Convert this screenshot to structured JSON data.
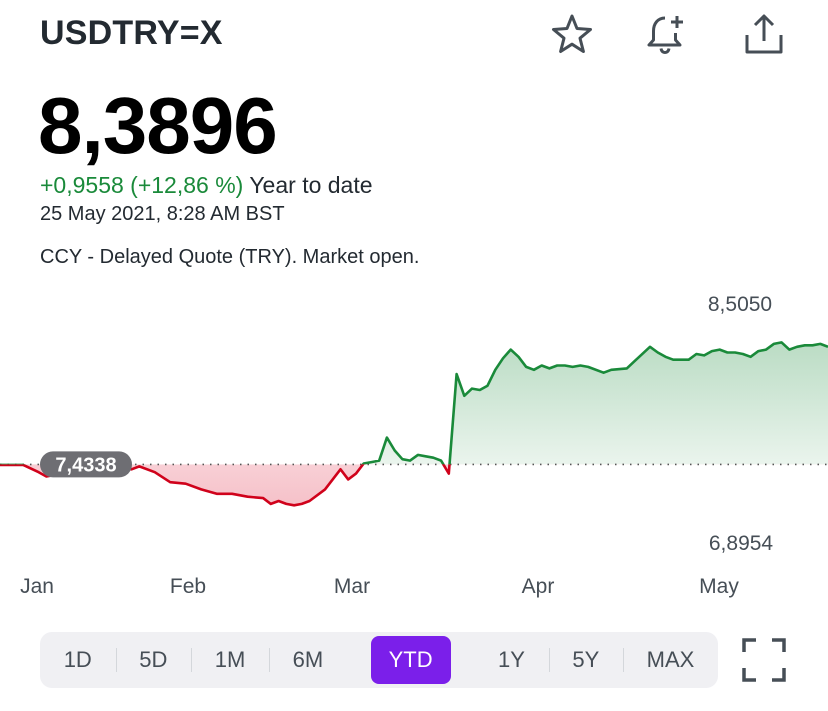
{
  "header": {
    "ticker": "USDTRY=X",
    "icons": [
      "star-icon",
      "bell-plus-icon",
      "share-icon"
    ]
  },
  "quote": {
    "price": "8,3896",
    "change": "+0,9558 (+12,86 %)",
    "period": "Year to date",
    "timestamp": "25 May 2021, 8:28 AM BST",
    "note": "CCY - Delayed Quote (TRY). Market open."
  },
  "chart_data": {
    "type": "line",
    "high_label": "8,5050",
    "low_label": "6,8954",
    "baseline_label": "7,4338",
    "baseline_value": 7.4338,
    "ylim": [
      6.8954,
      8.505
    ],
    "x_labels": [
      "Jan",
      "Feb",
      "Mar",
      "Apr",
      "May"
    ],
    "colors": {
      "up": "#1a8a3a",
      "down": "#d0021b",
      "up_fill": "#1a8a3a",
      "down_fill": "#e0304a",
      "baseline_pill": "#6e6e73"
    },
    "series": [
      {
        "values": [
          [
            0,
            7.43
          ],
          [
            3,
            7.43
          ],
          [
            5,
            7.38
          ],
          [
            6,
            7.35
          ],
          [
            8,
            7.37
          ],
          [
            10,
            7.4
          ],
          [
            12,
            7.44
          ],
          [
            14,
            7.43
          ],
          [
            16,
            7.41
          ],
          [
            17,
            7.4
          ],
          [
            18,
            7.42
          ],
          [
            20,
            7.38
          ],
          [
            22,
            7.31
          ],
          [
            24,
            7.3
          ],
          [
            26,
            7.26
          ],
          [
            28,
            7.23
          ],
          [
            30,
            7.23
          ],
          [
            32,
            7.21
          ],
          [
            34,
            7.2
          ],
          [
            35,
            7.16
          ],
          [
            36,
            7.18
          ],
          [
            37,
            7.16
          ],
          [
            38,
            7.15
          ],
          [
            39,
            7.16
          ],
          [
            40,
            7.18
          ],
          [
            42,
            7.26
          ],
          [
            43,
            7.33
          ],
          [
            44,
            7.4
          ],
          [
            45,
            7.33
          ],
          [
            46,
            7.37
          ],
          [
            47,
            7.44
          ],
          [
            48,
            7.45
          ],
          [
            49,
            7.46
          ],
          [
            50,
            7.62
          ],
          [
            51,
            7.53
          ],
          [
            52,
            7.47
          ],
          [
            53,
            7.46
          ],
          [
            54,
            7.5
          ],
          [
            55,
            7.49
          ],
          [
            56,
            7.48
          ],
          [
            57,
            7.46
          ],
          [
            58,
            7.37
          ],
          [
            59,
            8.06
          ],
          [
            60,
            7.91
          ],
          [
            61,
            7.96
          ],
          [
            62,
            7.95
          ],
          [
            63,
            7.98
          ],
          [
            64,
            8.09
          ],
          [
            65,
            8.17
          ],
          [
            66,
            8.23
          ],
          [
            67,
            8.18
          ],
          [
            68,
            8.11
          ],
          [
            69,
            8.09
          ],
          [
            70,
            8.12
          ],
          [
            71,
            8.1
          ],
          [
            72,
            8.12
          ],
          [
            73,
            8.12
          ],
          [
            74,
            8.11
          ],
          [
            75,
            8.12
          ],
          [
            76,
            8.11
          ],
          [
            78,
            8.07
          ],
          [
            79,
            8.09
          ],
          [
            81,
            8.1
          ],
          [
            82,
            8.15
          ],
          [
            84,
            8.25
          ],
          [
            85,
            8.21
          ],
          [
            86,
            8.18
          ],
          [
            87,
            8.16
          ],
          [
            88,
            8.16
          ],
          [
            89,
            8.16
          ],
          [
            90,
            8.2
          ],
          [
            91,
            8.19
          ],
          [
            92,
            8.22
          ],
          [
            93,
            8.23
          ],
          [
            94,
            8.21
          ],
          [
            95,
            8.21
          ],
          [
            96,
            8.2
          ],
          [
            97,
            8.18
          ],
          [
            98,
            8.22
          ],
          [
            99,
            8.23
          ],
          [
            100,
            8.27
          ],
          [
            101,
            8.28
          ],
          [
            102,
            8.23
          ],
          [
            103,
            8.25
          ],
          [
            104,
            8.26
          ],
          [
            105,
            8.26
          ],
          [
            106,
            8.27
          ],
          [
            107,
            8.25
          ]
        ]
      }
    ]
  },
  "range_tabs": {
    "items": [
      "1D",
      "5D",
      "1M",
      "6M",
      "YTD",
      "1Y",
      "5Y",
      "MAX"
    ],
    "active": "YTD"
  }
}
